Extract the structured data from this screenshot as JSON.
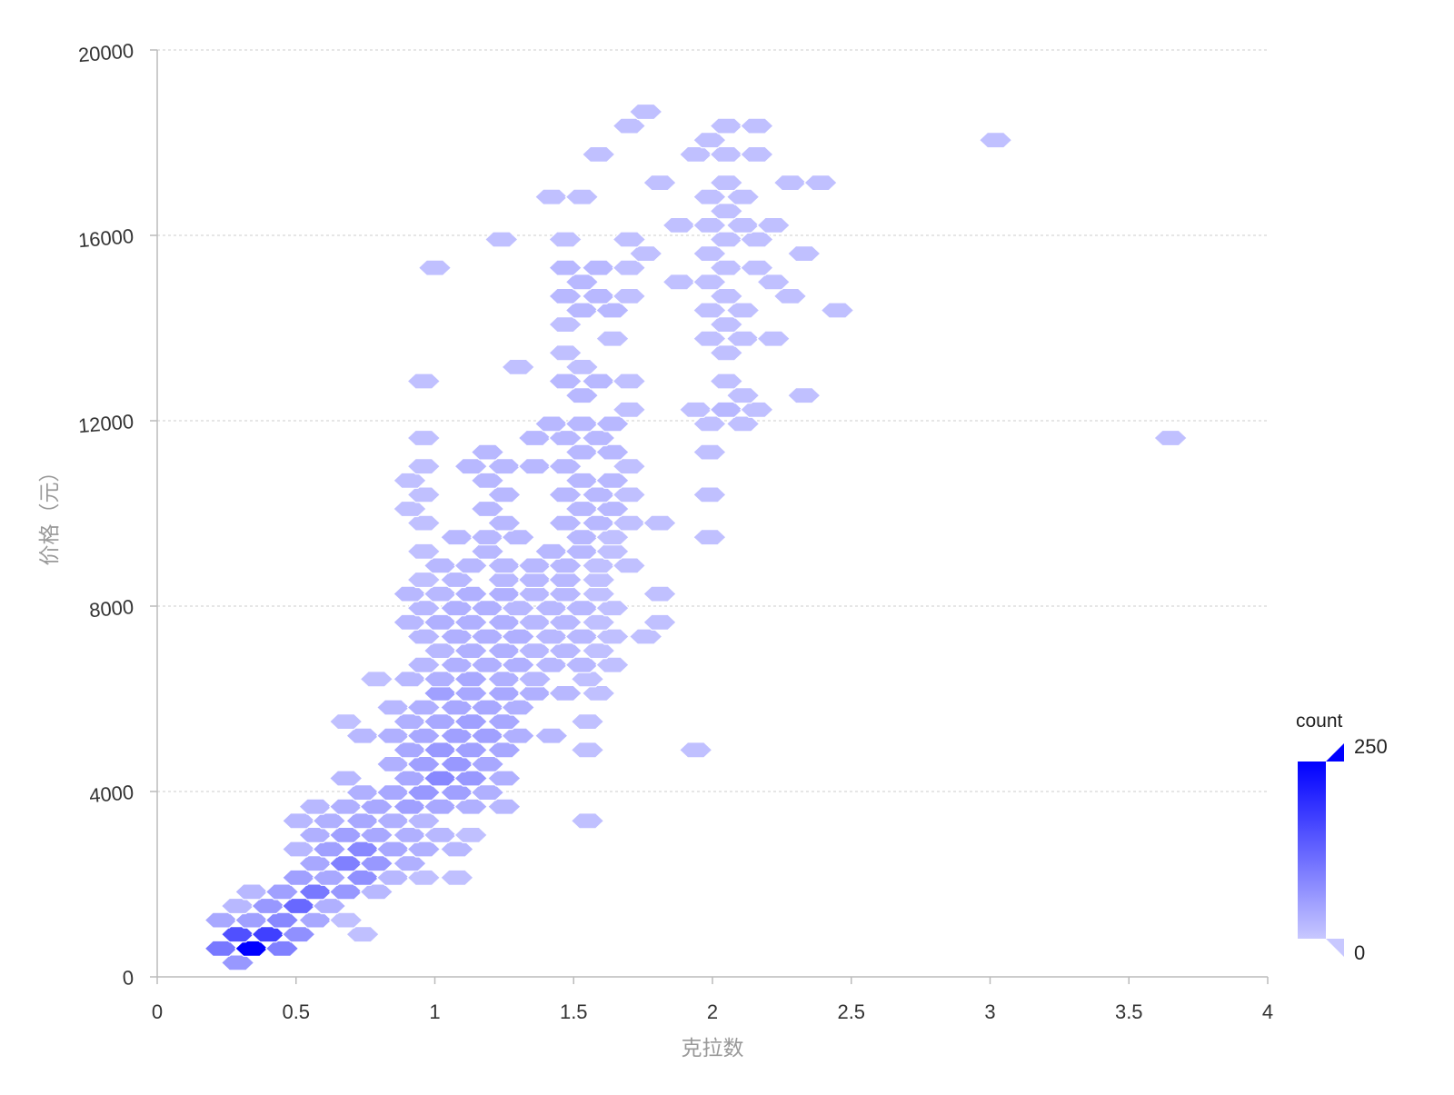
{
  "chart_data": {
    "type": "heatmap",
    "subtype": "hexbin",
    "title": "",
    "xlabel": "克拉数",
    "ylabel": "价格（元）",
    "xlim": [
      0,
      4
    ],
    "ylim": [
      0,
      20000
    ],
    "x_ticks": [
      0,
      0.5,
      1,
      1.5,
      2,
      2.5,
      3,
      3.5,
      4
    ],
    "x_tick_labels": [
      "0",
      "0.5",
      "1",
      "1.5",
      "2",
      "2.5",
      "3",
      "3.5",
      "4"
    ],
    "y_ticks": [
      0,
      4000,
      8000,
      12000,
      16000,
      20000
    ],
    "y_tick_labels": [
      "0",
      "4000",
      "8000",
      "12000",
      "16000",
      "20000"
    ],
    "grid": {
      "x": false,
      "y": true,
      "style": "dashed"
    },
    "legend": {
      "title": "count",
      "type": "continuous",
      "placement": "right-bottom",
      "min": 0,
      "max": 250,
      "min_label": "0",
      "max_label": "250",
      "color_low": "#c8c8ff",
      "color_high": "#0000ff"
    },
    "hex_grid": {
      "dx": 0.1,
      "dy": 303
    },
    "bins": [
      [
        0.29,
        306,
        60
      ],
      [
        0.23,
        612,
        100
      ],
      [
        0.34,
        612,
        250
      ],
      [
        0.45,
        612,
        90
      ],
      [
        0.29,
        918,
        150
      ],
      [
        0.4,
        918,
        170
      ],
      [
        0.51,
        918,
        70
      ],
      [
        0.74,
        918,
        10
      ],
      [
        0.23,
        1224,
        40
      ],
      [
        0.34,
        1224,
        50
      ],
      [
        0.45,
        1224,
        80
      ],
      [
        0.57,
        1224,
        40
      ],
      [
        0.68,
        1224,
        10
      ],
      [
        0.29,
        1530,
        20
      ],
      [
        0.4,
        1530,
        60
      ],
      [
        0.51,
        1530,
        120
      ],
      [
        0.62,
        1530,
        30
      ],
      [
        0.34,
        1836,
        20
      ],
      [
        0.45,
        1836,
        50
      ],
      [
        0.57,
        1836,
        100
      ],
      [
        0.68,
        1836,
        60
      ],
      [
        0.79,
        1836,
        20
      ],
      [
        0.51,
        2142,
        50
      ],
      [
        0.62,
        2142,
        40
      ],
      [
        0.74,
        2142,
        70
      ],
      [
        0.85,
        2142,
        20
      ],
      [
        0.96,
        2142,
        10
      ],
      [
        1.08,
        2142,
        10
      ],
      [
        0.57,
        2448,
        40
      ],
      [
        0.68,
        2448,
        90
      ],
      [
        0.79,
        2448,
        60
      ],
      [
        0.91,
        2448,
        30
      ],
      [
        0.51,
        2754,
        20
      ],
      [
        0.62,
        2754,
        50
      ],
      [
        0.74,
        2754,
        80
      ],
      [
        0.85,
        2754,
        40
      ],
      [
        0.96,
        2754,
        30
      ],
      [
        1.08,
        2754,
        20
      ],
      [
        0.57,
        3060,
        30
      ],
      [
        0.68,
        3060,
        50
      ],
      [
        0.79,
        3060,
        40
      ],
      [
        0.91,
        3060,
        30
      ],
      [
        1.02,
        3060,
        20
      ],
      [
        1.13,
        3060,
        10
      ],
      [
        0.51,
        3366,
        20
      ],
      [
        0.62,
        3366,
        30
      ],
      [
        0.74,
        3366,
        40
      ],
      [
        0.85,
        3366,
        30
      ],
      [
        0.96,
        3366,
        20
      ],
      [
        1.55,
        3366,
        10
      ],
      [
        0.57,
        3672,
        20
      ],
      [
        0.68,
        3672,
        30
      ],
      [
        0.79,
        3672,
        40
      ],
      [
        0.91,
        3672,
        50
      ],
      [
        1.02,
        3672,
        40
      ],
      [
        1.13,
        3672,
        30
      ],
      [
        1.25,
        3672,
        20
      ],
      [
        0.74,
        3978,
        30
      ],
      [
        0.85,
        3978,
        40
      ],
      [
        0.96,
        3978,
        60
      ],
      [
        1.08,
        3978,
        50
      ],
      [
        1.19,
        3978,
        30
      ],
      [
        0.68,
        4284,
        20
      ],
      [
        0.91,
        4284,
        40
      ],
      [
        1.02,
        4284,
        80
      ],
      [
        1.13,
        4284,
        60
      ],
      [
        1.25,
        4284,
        30
      ],
      [
        0.85,
        4590,
        30
      ],
      [
        0.96,
        4590,
        50
      ],
      [
        1.08,
        4590,
        60
      ],
      [
        1.19,
        4590,
        40
      ],
      [
        0.91,
        4896,
        40
      ],
      [
        1.02,
        4896,
        60
      ],
      [
        1.13,
        4896,
        50
      ],
      [
        1.25,
        4896,
        40
      ],
      [
        1.55,
        4896,
        10
      ],
      [
        1.94,
        4896,
        10
      ],
      [
        0.74,
        5202,
        20
      ],
      [
        0.85,
        5202,
        30
      ],
      [
        0.96,
        5202,
        40
      ],
      [
        1.08,
        5202,
        50
      ],
      [
        1.19,
        5202,
        50
      ],
      [
        1.3,
        5202,
        30
      ],
      [
        1.42,
        5202,
        20
      ],
      [
        0.68,
        5508,
        10
      ],
      [
        0.91,
        5508,
        30
      ],
      [
        1.02,
        5508,
        40
      ],
      [
        1.13,
        5508,
        50
      ],
      [
        1.25,
        5508,
        40
      ],
      [
        1.55,
        5508,
        10
      ],
      [
        0.85,
        5814,
        20
      ],
      [
        0.96,
        5814,
        30
      ],
      [
        1.08,
        5814,
        40
      ],
      [
        1.19,
        5814,
        40
      ],
      [
        1.3,
        5814,
        30
      ],
      [
        1.02,
        6120,
        50
      ],
      [
        1.13,
        6120,
        40
      ],
      [
        1.25,
        6120,
        40
      ],
      [
        1.36,
        6120,
        30
      ],
      [
        1.47,
        6120,
        20
      ],
      [
        1.59,
        6120,
        10
      ],
      [
        0.79,
        6426,
        10
      ],
      [
        0.91,
        6426,
        20
      ],
      [
        1.02,
        6426,
        30
      ],
      [
        1.13,
        6426,
        40
      ],
      [
        1.25,
        6426,
        30
      ],
      [
        1.36,
        6426,
        20
      ],
      [
        1.55,
        6426,
        10
      ],
      [
        0.96,
        6732,
        20
      ],
      [
        1.08,
        6732,
        30
      ],
      [
        1.19,
        6732,
        30
      ],
      [
        1.3,
        6732,
        30
      ],
      [
        1.42,
        6732,
        20
      ],
      [
        1.53,
        6732,
        20
      ],
      [
        1.64,
        6732,
        10
      ],
      [
        1.02,
        7038,
        20
      ],
      [
        1.13,
        7038,
        30
      ],
      [
        1.25,
        7038,
        30
      ],
      [
        1.36,
        7038,
        20
      ],
      [
        1.47,
        7038,
        20
      ],
      [
        1.59,
        7038,
        10
      ],
      [
        0.96,
        7344,
        20
      ],
      [
        1.08,
        7344,
        30
      ],
      [
        1.19,
        7344,
        30
      ],
      [
        1.3,
        7344,
        30
      ],
      [
        1.42,
        7344,
        20
      ],
      [
        1.53,
        7344,
        20
      ],
      [
        1.64,
        7344,
        10
      ],
      [
        1.76,
        7344,
        10
      ],
      [
        0.91,
        7650,
        20
      ],
      [
        1.02,
        7650,
        30
      ],
      [
        1.13,
        7650,
        30
      ],
      [
        1.25,
        7650,
        30
      ],
      [
        1.36,
        7650,
        20
      ],
      [
        1.47,
        7650,
        20
      ],
      [
        1.59,
        7650,
        10
      ],
      [
        1.81,
        7650,
        10
      ],
      [
        0.96,
        7956,
        20
      ],
      [
        1.08,
        7956,
        30
      ],
      [
        1.19,
        7956,
        30
      ],
      [
        1.3,
        7956,
        20
      ],
      [
        1.42,
        7956,
        20
      ],
      [
        1.53,
        7956,
        20
      ],
      [
        1.64,
        7956,
        10
      ],
      [
        0.91,
        8262,
        20
      ],
      [
        1.02,
        8262,
        20
      ],
      [
        1.13,
        8262,
        30
      ],
      [
        1.25,
        8262,
        30
      ],
      [
        1.36,
        8262,
        20
      ],
      [
        1.47,
        8262,
        20
      ],
      [
        1.59,
        8262,
        10
      ],
      [
        1.81,
        8262,
        10
      ],
      [
        0.96,
        8568,
        10
      ],
      [
        1.08,
        8568,
        20
      ],
      [
        1.25,
        8568,
        20
      ],
      [
        1.36,
        8568,
        20
      ],
      [
        1.47,
        8568,
        20
      ],
      [
        1.59,
        8568,
        10
      ],
      [
        1.02,
        8874,
        20
      ],
      [
        1.13,
        8874,
        20
      ],
      [
        1.25,
        8874,
        20
      ],
      [
        1.36,
        8874,
        20
      ],
      [
        1.47,
        8874,
        20
      ],
      [
        1.59,
        8874,
        10
      ],
      [
        1.7,
        8874,
        10
      ],
      [
        0.96,
        9180,
        10
      ],
      [
        1.19,
        9180,
        20
      ],
      [
        1.42,
        9180,
        20
      ],
      [
        1.53,
        9180,
        20
      ],
      [
        1.64,
        9180,
        10
      ],
      [
        1.08,
        9486,
        20
      ],
      [
        1.19,
        9486,
        20
      ],
      [
        1.3,
        9486,
        20
      ],
      [
        1.53,
        9486,
        20
      ],
      [
        1.64,
        9486,
        10
      ],
      [
        1.99,
        9486,
        10
      ],
      [
        0.96,
        9792,
        10
      ],
      [
        1.25,
        9792,
        20
      ],
      [
        1.47,
        9792,
        20
      ],
      [
        1.59,
        9792,
        20
      ],
      [
        1.7,
        9792,
        10
      ],
      [
        1.81,
        9792,
        10
      ],
      [
        0.91,
        10098,
        10
      ],
      [
        1.19,
        10098,
        20
      ],
      [
        1.53,
        10098,
        20
      ],
      [
        1.64,
        10098,
        20
      ],
      [
        0.96,
        10404,
        10
      ],
      [
        1.25,
        10404,
        20
      ],
      [
        1.47,
        10404,
        20
      ],
      [
        1.59,
        10404,
        20
      ],
      [
        1.7,
        10404,
        10
      ],
      [
        1.99,
        10404,
        10
      ],
      [
        0.91,
        10710,
        10
      ],
      [
        1.19,
        10710,
        20
      ],
      [
        1.53,
        10710,
        20
      ],
      [
        1.64,
        10710,
        20
      ],
      [
        0.96,
        11016,
        10
      ],
      [
        1.13,
        11016,
        20
      ],
      [
        1.25,
        11016,
        20
      ],
      [
        1.36,
        11016,
        20
      ],
      [
        1.47,
        11016,
        20
      ],
      [
        1.7,
        11016,
        10
      ],
      [
        1.19,
        11322,
        20
      ],
      [
        1.53,
        11322,
        20
      ],
      [
        1.64,
        11322,
        20
      ],
      [
        1.99,
        11322,
        10
      ],
      [
        0.96,
        11628,
        10
      ],
      [
        1.36,
        11628,
        20
      ],
      [
        1.47,
        11628,
        20
      ],
      [
        1.59,
        11628,
        20
      ],
      [
        3.65,
        11628,
        10
      ],
      [
        1.42,
        11934,
        20
      ],
      [
        1.53,
        11934,
        20
      ],
      [
        1.64,
        11934,
        20
      ],
      [
        1.99,
        11934,
        10
      ],
      [
        2.11,
        11934,
        10
      ],
      [
        1.7,
        12240,
        10
      ],
      [
        1.94,
        12240,
        10
      ],
      [
        2.05,
        12240,
        20
      ],
      [
        2.16,
        12240,
        10
      ],
      [
        1.53,
        12546,
        20
      ],
      [
        2.11,
        12546,
        10
      ],
      [
        2.33,
        12546,
        10
      ],
      [
        0.96,
        12852,
        10
      ],
      [
        1.47,
        12852,
        20
      ],
      [
        1.59,
        12852,
        20
      ],
      [
        1.7,
        12852,
        10
      ],
      [
        2.05,
        12852,
        10
      ],
      [
        1.3,
        13158,
        10
      ],
      [
        1.53,
        13158,
        10
      ],
      [
        1.47,
        13464,
        10
      ],
      [
        2.05,
        13464,
        10
      ],
      [
        1.64,
        13770,
        10
      ],
      [
        1.99,
        13770,
        10
      ],
      [
        2.11,
        13770,
        10
      ],
      [
        2.22,
        13770,
        10
      ],
      [
        1.47,
        14076,
        10
      ],
      [
        2.05,
        14076,
        10
      ],
      [
        1.53,
        14382,
        20
      ],
      [
        1.64,
        14382,
        20
      ],
      [
        1.99,
        14382,
        10
      ],
      [
        2.11,
        14382,
        10
      ],
      [
        2.45,
        14382,
        10
      ],
      [
        1.47,
        14688,
        20
      ],
      [
        1.59,
        14688,
        20
      ],
      [
        1.7,
        14688,
        10
      ],
      [
        2.05,
        14688,
        10
      ],
      [
        2.28,
        14688,
        10
      ],
      [
        1.53,
        14994,
        20
      ],
      [
        1.88,
        14994,
        10
      ],
      [
        1.99,
        14994,
        10
      ],
      [
        2.22,
        14994,
        10
      ],
      [
        1.0,
        15300,
        10
      ],
      [
        1.47,
        15300,
        20
      ],
      [
        1.59,
        15300,
        20
      ],
      [
        1.7,
        15300,
        10
      ],
      [
        2.05,
        15300,
        10
      ],
      [
        2.16,
        15300,
        10
      ],
      [
        1.76,
        15606,
        10
      ],
      [
        1.99,
        15606,
        10
      ],
      [
        2.33,
        15606,
        10
      ],
      [
        1.24,
        15912,
        10
      ],
      [
        1.47,
        15912,
        10
      ],
      [
        1.7,
        15912,
        10
      ],
      [
        2.05,
        15912,
        10
      ],
      [
        2.16,
        15912,
        10
      ],
      [
        1.88,
        16218,
        10
      ],
      [
        1.99,
        16218,
        10
      ],
      [
        2.11,
        16218,
        10
      ],
      [
        2.22,
        16218,
        10
      ],
      [
        2.05,
        16524,
        10
      ],
      [
        1.42,
        16830,
        10
      ],
      [
        1.53,
        16830,
        10
      ],
      [
        1.99,
        16830,
        10
      ],
      [
        2.11,
        16830,
        10
      ],
      [
        1.81,
        17136,
        10
      ],
      [
        2.05,
        17136,
        10
      ],
      [
        2.28,
        17136,
        10
      ],
      [
        2.39,
        17136,
        10
      ],
      [
        1.59,
        17748,
        10
      ],
      [
        1.94,
        17748,
        10
      ],
      [
        2.05,
        17748,
        10
      ],
      [
        2.16,
        17748,
        10
      ],
      [
        3.02,
        18054,
        10
      ],
      [
        1.99,
        18054,
        10
      ],
      [
        1.7,
        18360,
        10
      ],
      [
        2.05,
        18360,
        10
      ],
      [
        2.16,
        18360,
        10
      ],
      [
        1.76,
        18666,
        10
      ]
    ]
  }
}
